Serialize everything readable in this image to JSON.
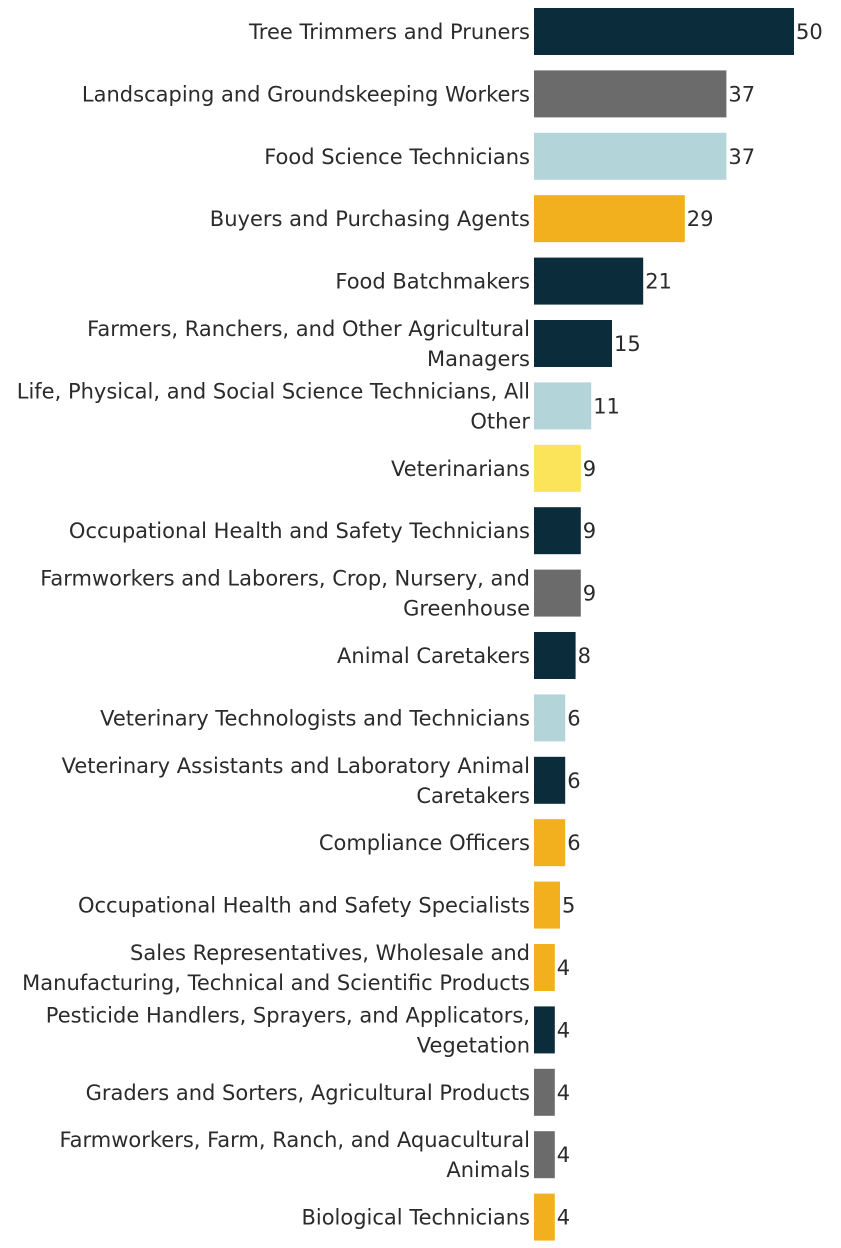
{
  "chart_data": {
    "type": "bar",
    "orientation": "horizontal",
    "title": "",
    "xlabel": "",
    "ylabel": "",
    "xlim": [
      0,
      50
    ],
    "grid": false,
    "legend": "none",
    "categories": [
      [
        "Tree Trimmers and Pruners"
      ],
      [
        "Landscaping and Groundskeeping Workers"
      ],
      [
        "Food Science Technicians"
      ],
      [
        "Buyers and Purchasing Agents"
      ],
      [
        "Food Batchmakers"
      ],
      [
        "Farmers, Ranchers, and Other Agricultural",
        "Managers"
      ],
      [
        "Life, Physical, and Social Science Technicians, All",
        "Other"
      ],
      [
        "Veterinarians"
      ],
      [
        "Occupational Health and Safety Technicians"
      ],
      [
        "Farmworkers and Laborers, Crop, Nursery, and",
        "Greenhouse"
      ],
      [
        "Animal Caretakers"
      ],
      [
        "Veterinary Technologists and Technicians"
      ],
      [
        "Veterinary Assistants and Laboratory Animal",
        "Caretakers"
      ],
      [
        "Compliance Officers"
      ],
      [
        "Occupational Health and Safety Specialists"
      ],
      [
        "Sales Representatives, Wholesale and",
        "Manufacturing, Technical and Scientific Products"
      ],
      [
        "Pesticide Handlers, Sprayers, and Applicators,",
        "Vegetation"
      ],
      [
        "Graders and Sorters, Agricultural Products"
      ],
      [
        "Farmworkers, Farm, Ranch, and Aquacultural",
        "Animals"
      ],
      [
        "Biological Technicians"
      ]
    ],
    "values": [
      50,
      37,
      37,
      29,
      21,
      15,
      11,
      9,
      9,
      9,
      8,
      6,
      6,
      6,
      5,
      4,
      4,
      4,
      4,
      4
    ],
    "value_labels": [
      "50",
      "37",
      "37",
      "29",
      "21",
      "15",
      "11",
      "9",
      "9",
      "9",
      "8",
      "6",
      "6",
      "6",
      "5",
      "4",
      "4",
      "4",
      "4",
      "4"
    ],
    "colors": [
      "#0b2d3b",
      "#6b6b6b",
      "#b3d5da",
      "#f2b01e",
      "#0b2d3b",
      "#0b2d3b",
      "#b3d5da",
      "#fbe35a",
      "#0b2d3b",
      "#6b6b6b",
      "#0b2d3b",
      "#b3d5da",
      "#0b2d3b",
      "#f2b01e",
      "#f2b01e",
      "#f2b01e",
      "#0b2d3b",
      "#6b6b6b",
      "#6b6b6b",
      "#f2b01e"
    ]
  }
}
